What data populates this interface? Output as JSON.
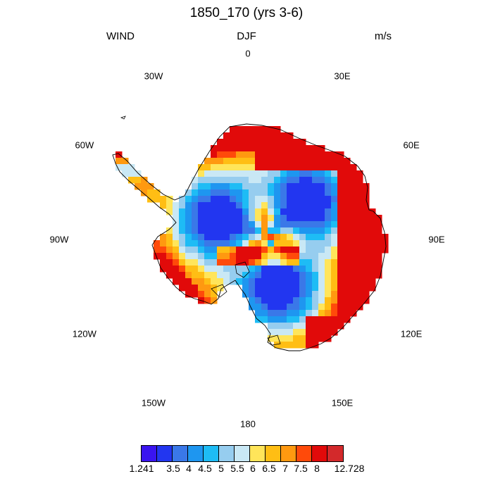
{
  "chart_data": {
    "type": "heatmap",
    "projection": "south-polar-stereographic",
    "title": "1850_170 (yrs 3-6)",
    "left_subtitle": "WIND",
    "center_subtitle": "DJF",
    "right_subtitle": "m/s",
    "variable": "WIND",
    "season": "DJF",
    "units": "m/s",
    "longitude_labels": [
      "0",
      "30E",
      "60E",
      "90E",
      "120E",
      "150E",
      "180",
      "150W",
      "120W",
      "90W",
      "60W",
      "30W"
    ],
    "colorbar": {
      "labels": [
        "1.241",
        "3.5",
        "4",
        "4.5",
        "5",
        "5.5",
        "6",
        "6.5",
        "7",
        "7.5",
        "8",
        "12.728"
      ],
      "min": 1.241,
      "max": 12.728,
      "levels": [
        3.5,
        4,
        4.5,
        5,
        5.5,
        6,
        6.5,
        7,
        7.5,
        8
      ],
      "colors": [
        "#3a14f0",
        "#2236f0",
        "#3a78e8",
        "#1e96f0",
        "#1ebcf5",
        "#96cdef",
        "#c9e8f5",
        "#ffe55a",
        "#ffbe14",
        "#ff9910",
        "#ff4a0a",
        "#e10a0a",
        "#d3292b"
      ]
    },
    "regions": [
      {
        "description": "East Antarctica coast 0E-160E",
        "level_class": "high",
        "approx_value": 10
      },
      {
        "description": "Antarctic Peninsula tip",
        "level_class": "high",
        "approx_value": 8
      },
      {
        "description": "Interior plateau arms",
        "level_class": "low",
        "approx_value": 4.5
      }
    ]
  }
}
